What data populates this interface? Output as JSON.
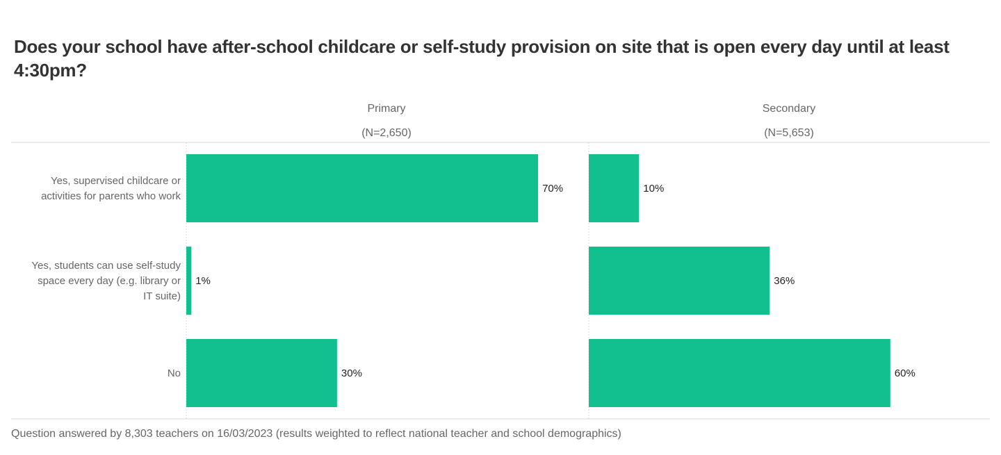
{
  "title": "Does your school have after-school childcare or self-study provision on site that is open every day until at least 4:30pm?",
  "footer": "Question answered by 8,303 teachers on 16/03/2023 (results weighted to reflect national teacher and school demographics)",
  "colors": {
    "bar": "#12bf8f",
    "grid": "#d9d9d9",
    "text": "#666666"
  },
  "chart_data": {
    "type": "bar",
    "orientation": "horizontal",
    "title": "Does your school have after-school childcare or self-study provision on site that is open every day until at least 4:30pm?",
    "categories": [
      [
        "Yes, supervised childcare or",
        "activities for parents who work"
      ],
      [
        "Yes, students can use self-study",
        "space every day (e.g. library or",
        "IT suite)"
      ],
      [
        "No"
      ]
    ],
    "panels": [
      {
        "name": "Primary",
        "n_label": "(N=2,650)",
        "values": [
          70,
          1,
          30
        ],
        "labels": [
          "70%",
          "1%",
          "30%"
        ]
      },
      {
        "name": "Secondary",
        "n_label": "(N=5,653)",
        "values": [
          10,
          36,
          60
        ],
        "labels": [
          "10%",
          "36%",
          "60%"
        ]
      }
    ],
    "unit": "%",
    "xlim": [
      0,
      80
    ],
    "grid": false
  }
}
